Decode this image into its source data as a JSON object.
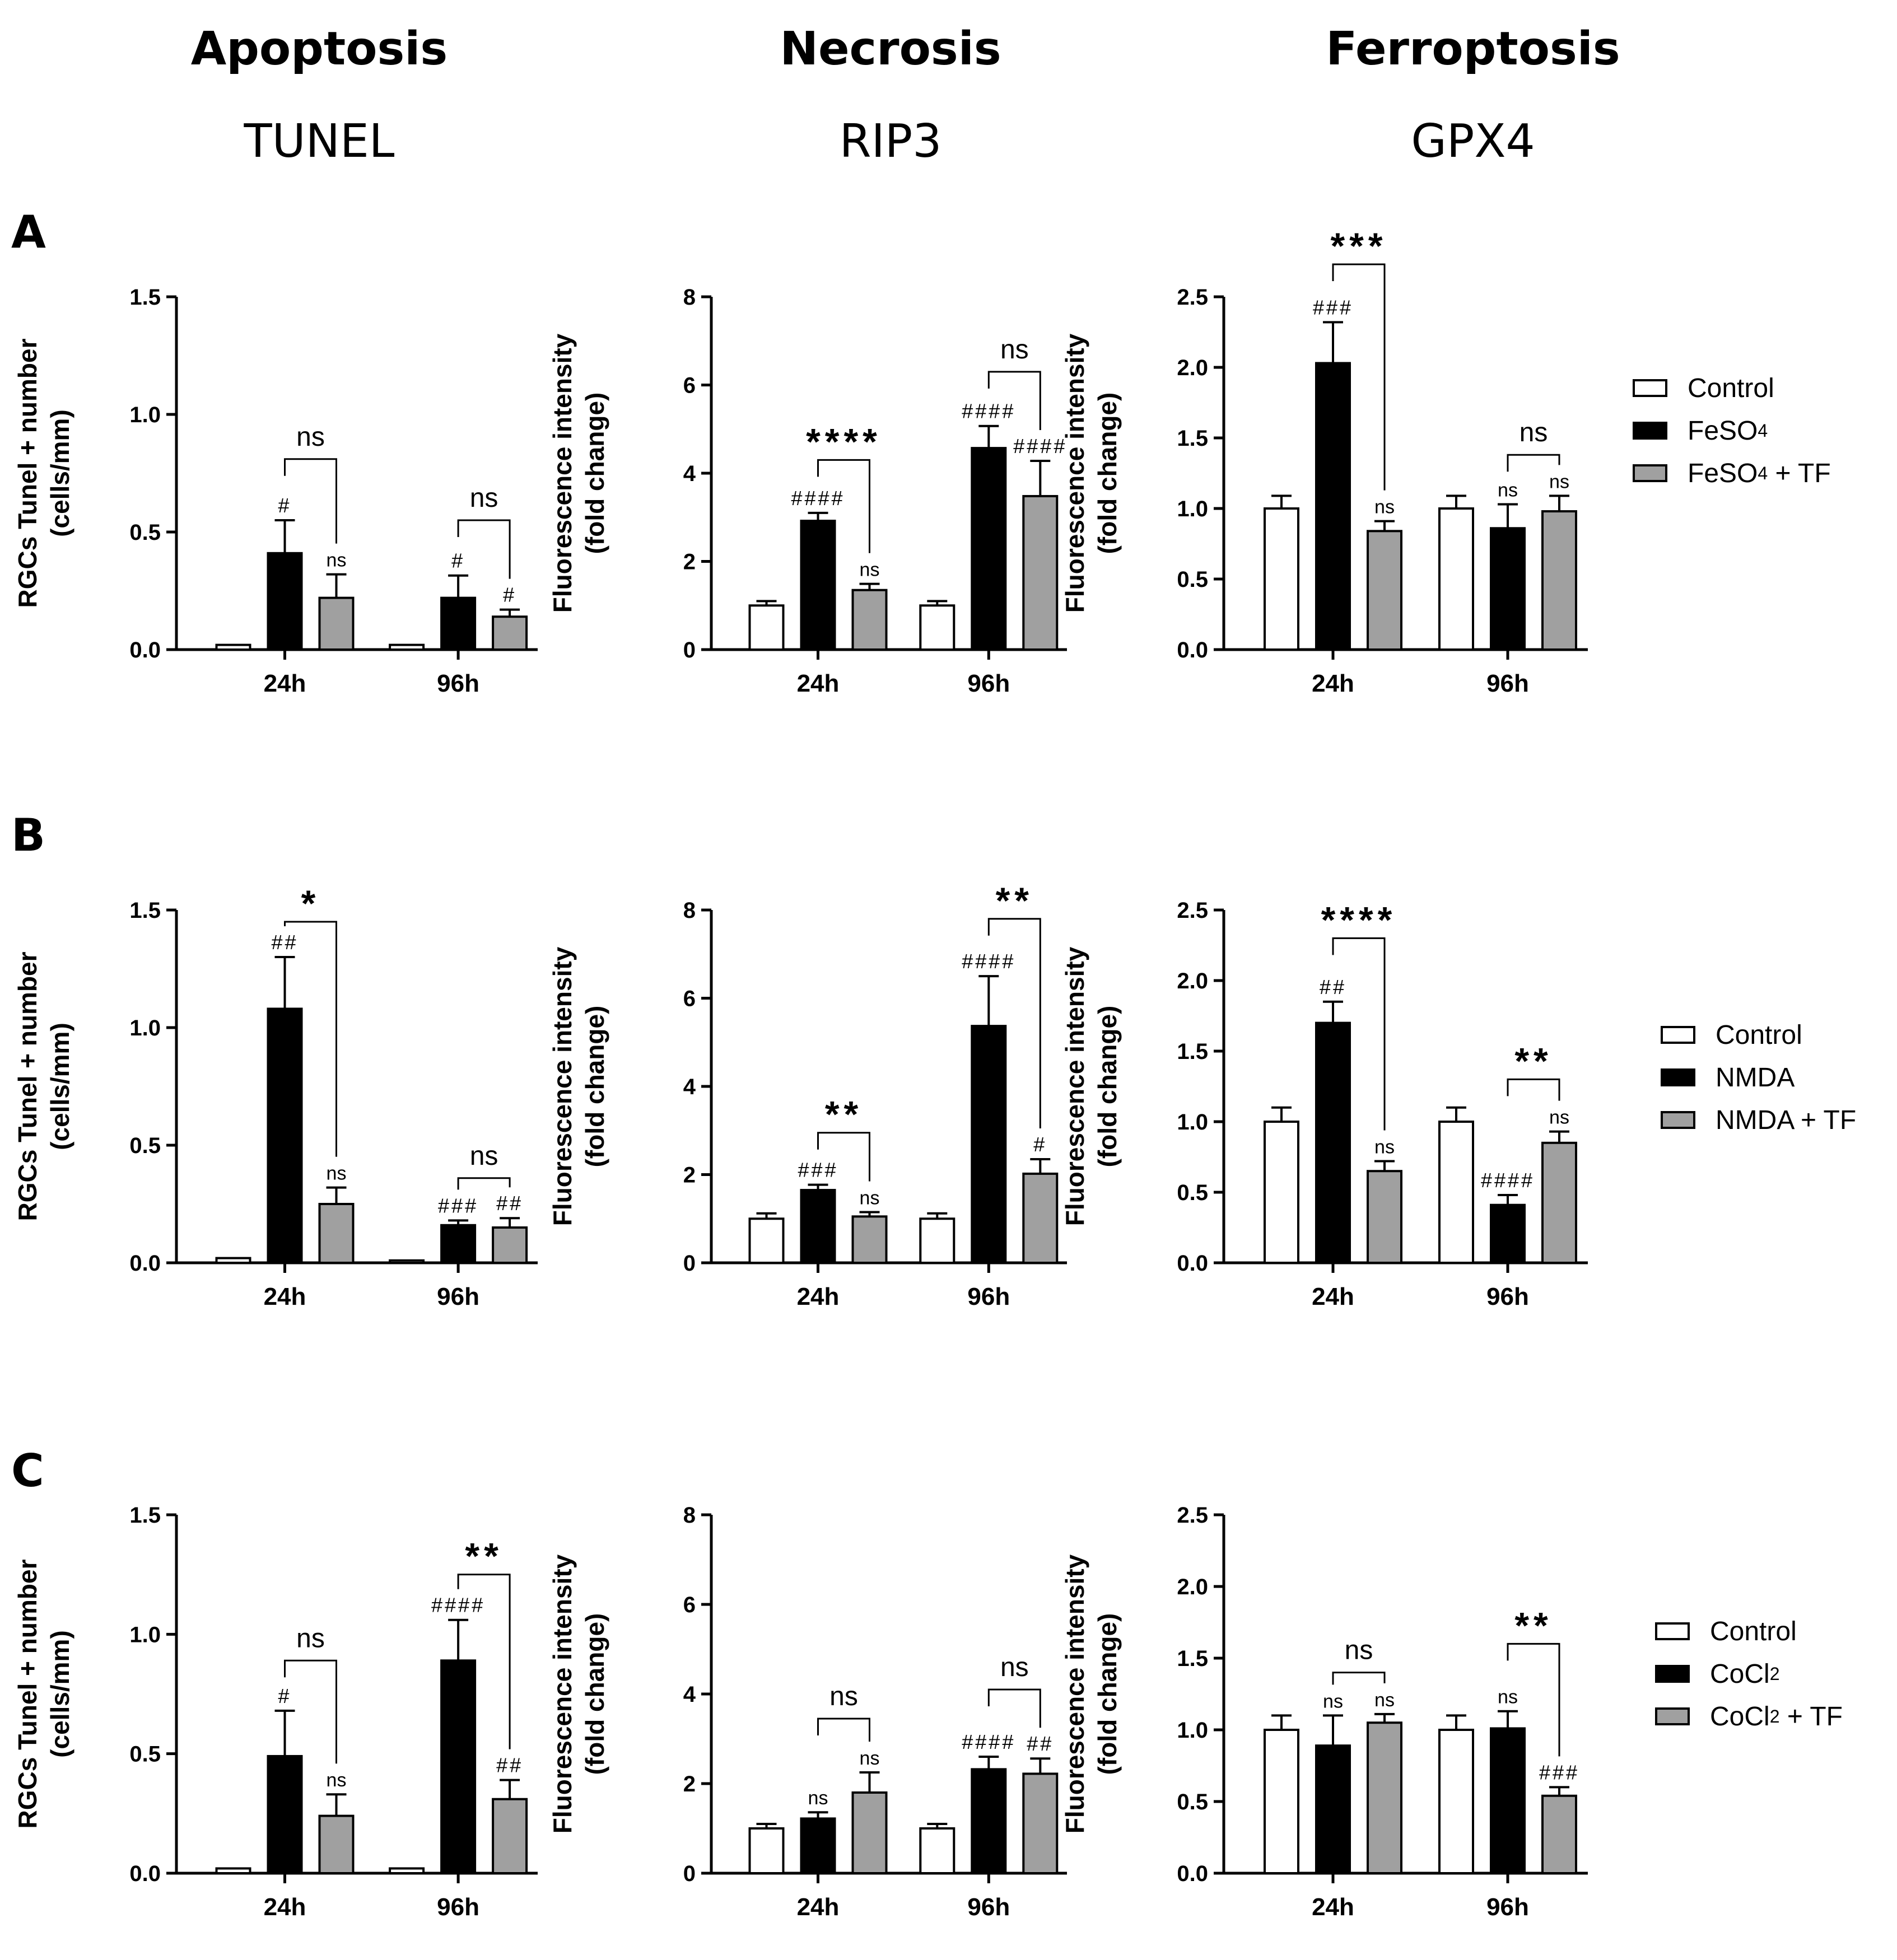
{
  "header": {
    "categories": [
      "Apoptosis",
      "Necrosis",
      "Ferroptosis"
    ],
    "markers": [
      "TUNEL",
      "RIP3",
      "GPX4"
    ]
  },
  "rows": [
    {
      "label": "A",
      "legend": [
        {
          "text": "Control",
          "color": "#ffffff"
        },
        {
          "text": "FeSO",
          "sub": "4",
          "after": "",
          "color": "#000000"
        },
        {
          "text": "FeSO",
          "sub": "4",
          "after": " + TF",
          "color": "#a0a0a0"
        }
      ]
    },
    {
      "label": "B",
      "legend": [
        {
          "text": "Control",
          "color": "#ffffff"
        },
        {
          "text": "NMDA",
          "sub": "",
          "after": "",
          "color": "#000000"
        },
        {
          "text": "NMDA + TF",
          "sub": "",
          "after": "",
          "color": "#a0a0a0"
        }
      ]
    },
    {
      "label": "C",
      "legend": [
        {
          "text": "Control",
          "color": "#ffffff"
        },
        {
          "text": "CoCl",
          "sub": "2",
          "after": "",
          "color": "#000000"
        },
        {
          "text": "CoCl",
          "sub": "2",
          "after": " + TF",
          "color": "#a0a0a0"
        }
      ]
    }
  ],
  "chart_data": [
    {
      "type": "bar",
      "row": "A",
      "col": 0,
      "ylabel": [
        "RGCs Tunel + number",
        "(cells/mm)"
      ],
      "ylim": [
        0,
        1.5
      ],
      "yticks": [
        "0.0",
        "0.5",
        "1.0",
        "1.5"
      ],
      "yvals": [
        0,
        0.5,
        1.0,
        1.5
      ],
      "categories": [
        "24h",
        "96h"
      ],
      "series": [
        {
          "name": "Control",
          "values": [
            0.02,
            0.02
          ],
          "err": [
            0,
            0
          ],
          "labels": [
            "",
            ""
          ]
        },
        {
          "name": "FeSO4",
          "values": [
            0.41,
            0.22
          ],
          "err": [
            0.14,
            0.095
          ],
          "labels": [
            "#",
            "#"
          ]
        },
        {
          "name": "FeSO4 + TF",
          "values": [
            0.22,
            0.14
          ],
          "err": [
            0.1,
            0.03
          ],
          "labels": [
            "ns",
            "#"
          ]
        }
      ],
      "brackets": [
        {
          "group": 0,
          "text": "ns",
          "from": 1,
          "to": 2,
          "y": 0.81
        },
        {
          "group": 1,
          "text": "ns",
          "from": 1,
          "to": 2,
          "y": 0.55
        }
      ]
    },
    {
      "type": "bar",
      "row": "A",
      "col": 1,
      "ylabel": [
        "Fluorescence intensity",
        "(fold change)"
      ],
      "ylim": [
        0,
        8
      ],
      "yticks": [
        "0",
        "2",
        "4",
        "6",
        "8"
      ],
      "yvals": [
        0,
        2,
        4,
        6,
        8
      ],
      "categories": [
        "24h",
        "96h"
      ],
      "series": [
        {
          "name": "Control",
          "values": [
            1.0,
            1.0
          ],
          "err": [
            0.1,
            0.1
          ],
          "labels": [
            "",
            ""
          ]
        },
        {
          "name": "FeSO4",
          "values": [
            2.92,
            4.57
          ],
          "err": [
            0.18,
            0.5
          ],
          "labels": [
            "####",
            "####"
          ]
        },
        {
          "name": "FeSO4 + TF",
          "values": [
            1.35,
            3.48
          ],
          "err": [
            0.14,
            0.8
          ],
          "labels": [
            "ns",
            "####"
          ]
        }
      ],
      "brackets": [
        {
          "group": 0,
          "text": "****",
          "from": 1,
          "to": 2,
          "y": 4.3
        },
        {
          "group": 1,
          "text": "ns",
          "from": 1,
          "to": 2,
          "y": 6.3
        }
      ]
    },
    {
      "type": "bar",
      "row": "A",
      "col": 2,
      "ylabel": [
        "Fluorescence intensity",
        "(fold change)"
      ],
      "ylim": [
        0,
        2.5
      ],
      "yticks": [
        "0.0",
        "0.5",
        "1.0",
        "1.5",
        "2.0",
        "2.5"
      ],
      "yvals": [
        0,
        0.5,
        1.0,
        1.5,
        2.0,
        2.5
      ],
      "categories": [
        "24h",
        "96h"
      ],
      "series": [
        {
          "name": "Control",
          "values": [
            1.0,
            1.0
          ],
          "err": [
            0.09,
            0.09
          ],
          "labels": [
            "",
            ""
          ]
        },
        {
          "name": "FeSO4",
          "values": [
            2.03,
            0.86
          ],
          "err": [
            0.29,
            0.17
          ],
          "labels": [
            "###",
            "ns"
          ]
        },
        {
          "name": "FeSO4 + TF",
          "values": [
            0.84,
            0.98
          ],
          "err": [
            0.07,
            0.11
          ],
          "labels": [
            "ns",
            "ns"
          ]
        }
      ],
      "brackets": [
        {
          "group": 0,
          "text": "***",
          "from": 1,
          "to": 2,
          "y": 2.73
        },
        {
          "group": 1,
          "text": "ns",
          "from": 1,
          "to": 2,
          "y": 1.38
        }
      ]
    },
    {
      "type": "bar",
      "row": "B",
      "col": 0,
      "ylabel": [
        "RGCs Tunel + number",
        "(cells/mm)"
      ],
      "ylim": [
        0,
        1.5
      ],
      "yticks": [
        "0.0",
        "0.5",
        "1.0",
        "1.5"
      ],
      "yvals": [
        0,
        0.5,
        1.0,
        1.5
      ],
      "categories": [
        "24h",
        "96h"
      ],
      "series": [
        {
          "name": "Control",
          "values": [
            0.02,
            0.01
          ],
          "err": [
            0,
            0
          ],
          "labels": [
            "",
            ""
          ]
        },
        {
          "name": "NMDA",
          "values": [
            1.08,
            0.16
          ],
          "err": [
            0.22,
            0.02
          ],
          "labels": [
            "##",
            "###"
          ]
        },
        {
          "name": "NMDA + TF",
          "values": [
            0.25,
            0.15
          ],
          "err": [
            0.07,
            0.04
          ],
          "labels": [
            "ns",
            "##"
          ]
        }
      ],
      "brackets": [
        {
          "group": 0,
          "text": "*",
          "from": 1,
          "to": 2,
          "y": 1.45
        },
        {
          "group": 1,
          "text": "ns",
          "from": 1,
          "to": 2,
          "y": 0.36
        }
      ]
    },
    {
      "type": "bar",
      "row": "B",
      "col": 1,
      "ylabel": [
        "Fluorescence intensity",
        "(fold change)"
      ],
      "ylim": [
        0,
        8
      ],
      "yticks": [
        "0",
        "2",
        "4",
        "6",
        "8"
      ],
      "yvals": [
        0,
        2,
        4,
        6,
        8
      ],
      "categories": [
        "24h",
        "96h"
      ],
      "series": [
        {
          "name": "Control",
          "values": [
            1.0,
            1.0
          ],
          "err": [
            0.12,
            0.12
          ],
          "labels": [
            "",
            ""
          ]
        },
        {
          "name": "NMDA",
          "values": [
            1.65,
            5.37
          ],
          "err": [
            0.12,
            1.13
          ],
          "labels": [
            "###",
            "####"
          ]
        },
        {
          "name": "NMDA + TF",
          "values": [
            1.05,
            2.02
          ],
          "err": [
            0.1,
            0.33
          ],
          "labels": [
            "ns",
            "#"
          ]
        }
      ],
      "brackets": [
        {
          "group": 0,
          "text": "**",
          "from": 1,
          "to": 2,
          "y": 2.95
        },
        {
          "group": 1,
          "text": "**",
          "from": 1,
          "to": 2,
          "y": 7.8
        }
      ]
    },
    {
      "type": "bar",
      "row": "B",
      "col": 2,
      "ylabel": [
        "Fluorescence intensity",
        "(fold change)"
      ],
      "ylim": [
        0,
        2.5
      ],
      "yticks": [
        "0.0",
        "0.5",
        "1.0",
        "1.5",
        "2.0",
        "2.5"
      ],
      "yvals": [
        0,
        0.5,
        1.0,
        1.5,
        2.0,
        2.5
      ],
      "categories": [
        "24h",
        "96h"
      ],
      "series": [
        {
          "name": "Control",
          "values": [
            1.0,
            1.0
          ],
          "err": [
            0.1,
            0.1
          ],
          "labels": [
            "",
            ""
          ]
        },
        {
          "name": "NMDA",
          "values": [
            1.7,
            0.41
          ],
          "err": [
            0.15,
            0.07
          ],
          "labels": [
            "##",
            "####"
          ]
        },
        {
          "name": "NMDA + TF",
          "values": [
            0.65,
            0.85
          ],
          "err": [
            0.07,
            0.08
          ],
          "labels": [
            "ns",
            "ns"
          ]
        }
      ],
      "brackets": [
        {
          "group": 0,
          "text": "****",
          "from": 1,
          "to": 2,
          "y": 2.3
        },
        {
          "group": 1,
          "text": "**",
          "from": 1,
          "to": 2,
          "y": 1.3
        }
      ]
    },
    {
      "type": "bar",
      "row": "C",
      "col": 0,
      "ylabel": [
        "RGCs Tunel + number",
        "(cells/mm)"
      ],
      "ylim": [
        0,
        1.5
      ],
      "yticks": [
        "0.0",
        "0.5",
        "1.0",
        "1.5"
      ],
      "yvals": [
        0,
        0.5,
        1.0,
        1.5
      ],
      "categories": [
        "24h",
        "96h"
      ],
      "series": [
        {
          "name": "Control",
          "values": [
            0.02,
            0.02
          ],
          "err": [
            0,
            0
          ],
          "labels": [
            "",
            ""
          ]
        },
        {
          "name": "CoCl2",
          "values": [
            0.49,
            0.89
          ],
          "err": [
            0.19,
            0.17
          ],
          "labels": [
            "#",
            "####"
          ]
        },
        {
          "name": "CoCl2 + TF",
          "values": [
            0.24,
            0.31
          ],
          "err": [
            0.09,
            0.08
          ],
          "labels": [
            "ns",
            "##"
          ]
        }
      ],
      "brackets": [
        {
          "group": 0,
          "text": "ns",
          "from": 1,
          "to": 2,
          "y": 0.89
        },
        {
          "group": 1,
          "text": "**",
          "from": 1,
          "to": 2,
          "y": 1.25
        }
      ]
    },
    {
      "type": "bar",
      "row": "C",
      "col": 1,
      "ylabel": [
        "Fluorescence intensity",
        "(fold change)"
      ],
      "ylim": [
        0,
        8
      ],
      "yticks": [
        "0",
        "2",
        "4",
        "6",
        "8"
      ],
      "yvals": [
        0,
        2,
        4,
        6,
        8
      ],
      "categories": [
        "24h",
        "96h"
      ],
      "series": [
        {
          "name": "Control",
          "values": [
            1.0,
            1.0
          ],
          "err": [
            0.1,
            0.1
          ],
          "labels": [
            "",
            ""
          ]
        },
        {
          "name": "CoCl2",
          "values": [
            1.22,
            2.32
          ],
          "err": [
            0.14,
            0.28
          ],
          "labels": [
            "ns",
            "####"
          ]
        },
        {
          "name": "CoCl2 + TF",
          "values": [
            1.8,
            2.22
          ],
          "err": [
            0.45,
            0.34
          ],
          "labels": [
            "ns",
            "##"
          ]
        }
      ],
      "brackets": [
        {
          "group": 0,
          "text": "ns",
          "from": 1,
          "to": 2,
          "y": 3.45
        },
        {
          "group": 1,
          "text": "ns",
          "from": 1,
          "to": 2,
          "y": 4.1
        }
      ]
    },
    {
      "type": "bar",
      "row": "C",
      "col": 2,
      "ylabel": [
        "Fluorescence intensity",
        "(fold change)"
      ],
      "ylim": [
        0,
        2.5
      ],
      "yticks": [
        "0.0",
        "0.5",
        "1.0",
        "1.5",
        "2.0",
        "2.5"
      ],
      "yvals": [
        0,
        0.5,
        1.0,
        1.5,
        2.0,
        2.5
      ],
      "categories": [
        "24h",
        "96h"
      ],
      "series": [
        {
          "name": "Control",
          "values": [
            1.0,
            1.0
          ],
          "err": [
            0.1,
            0.1
          ],
          "labels": [
            "",
            ""
          ]
        },
        {
          "name": "CoCl2",
          "values": [
            0.89,
            1.01
          ],
          "err": [
            0.21,
            0.12
          ],
          "labels": [
            "ns",
            "ns"
          ]
        },
        {
          "name": "CoCl2 + TF",
          "values": [
            1.05,
            0.54
          ],
          "err": [
            0.06,
            0.06
          ],
          "labels": [
            "ns",
            "###"
          ]
        }
      ],
      "brackets": [
        {
          "group": 0,
          "text": "ns",
          "from": 1,
          "to": 2,
          "y": 1.4
        },
        {
          "group": 1,
          "text": "**",
          "from": 1,
          "to": 2,
          "y": 1.6
        }
      ]
    }
  ]
}
